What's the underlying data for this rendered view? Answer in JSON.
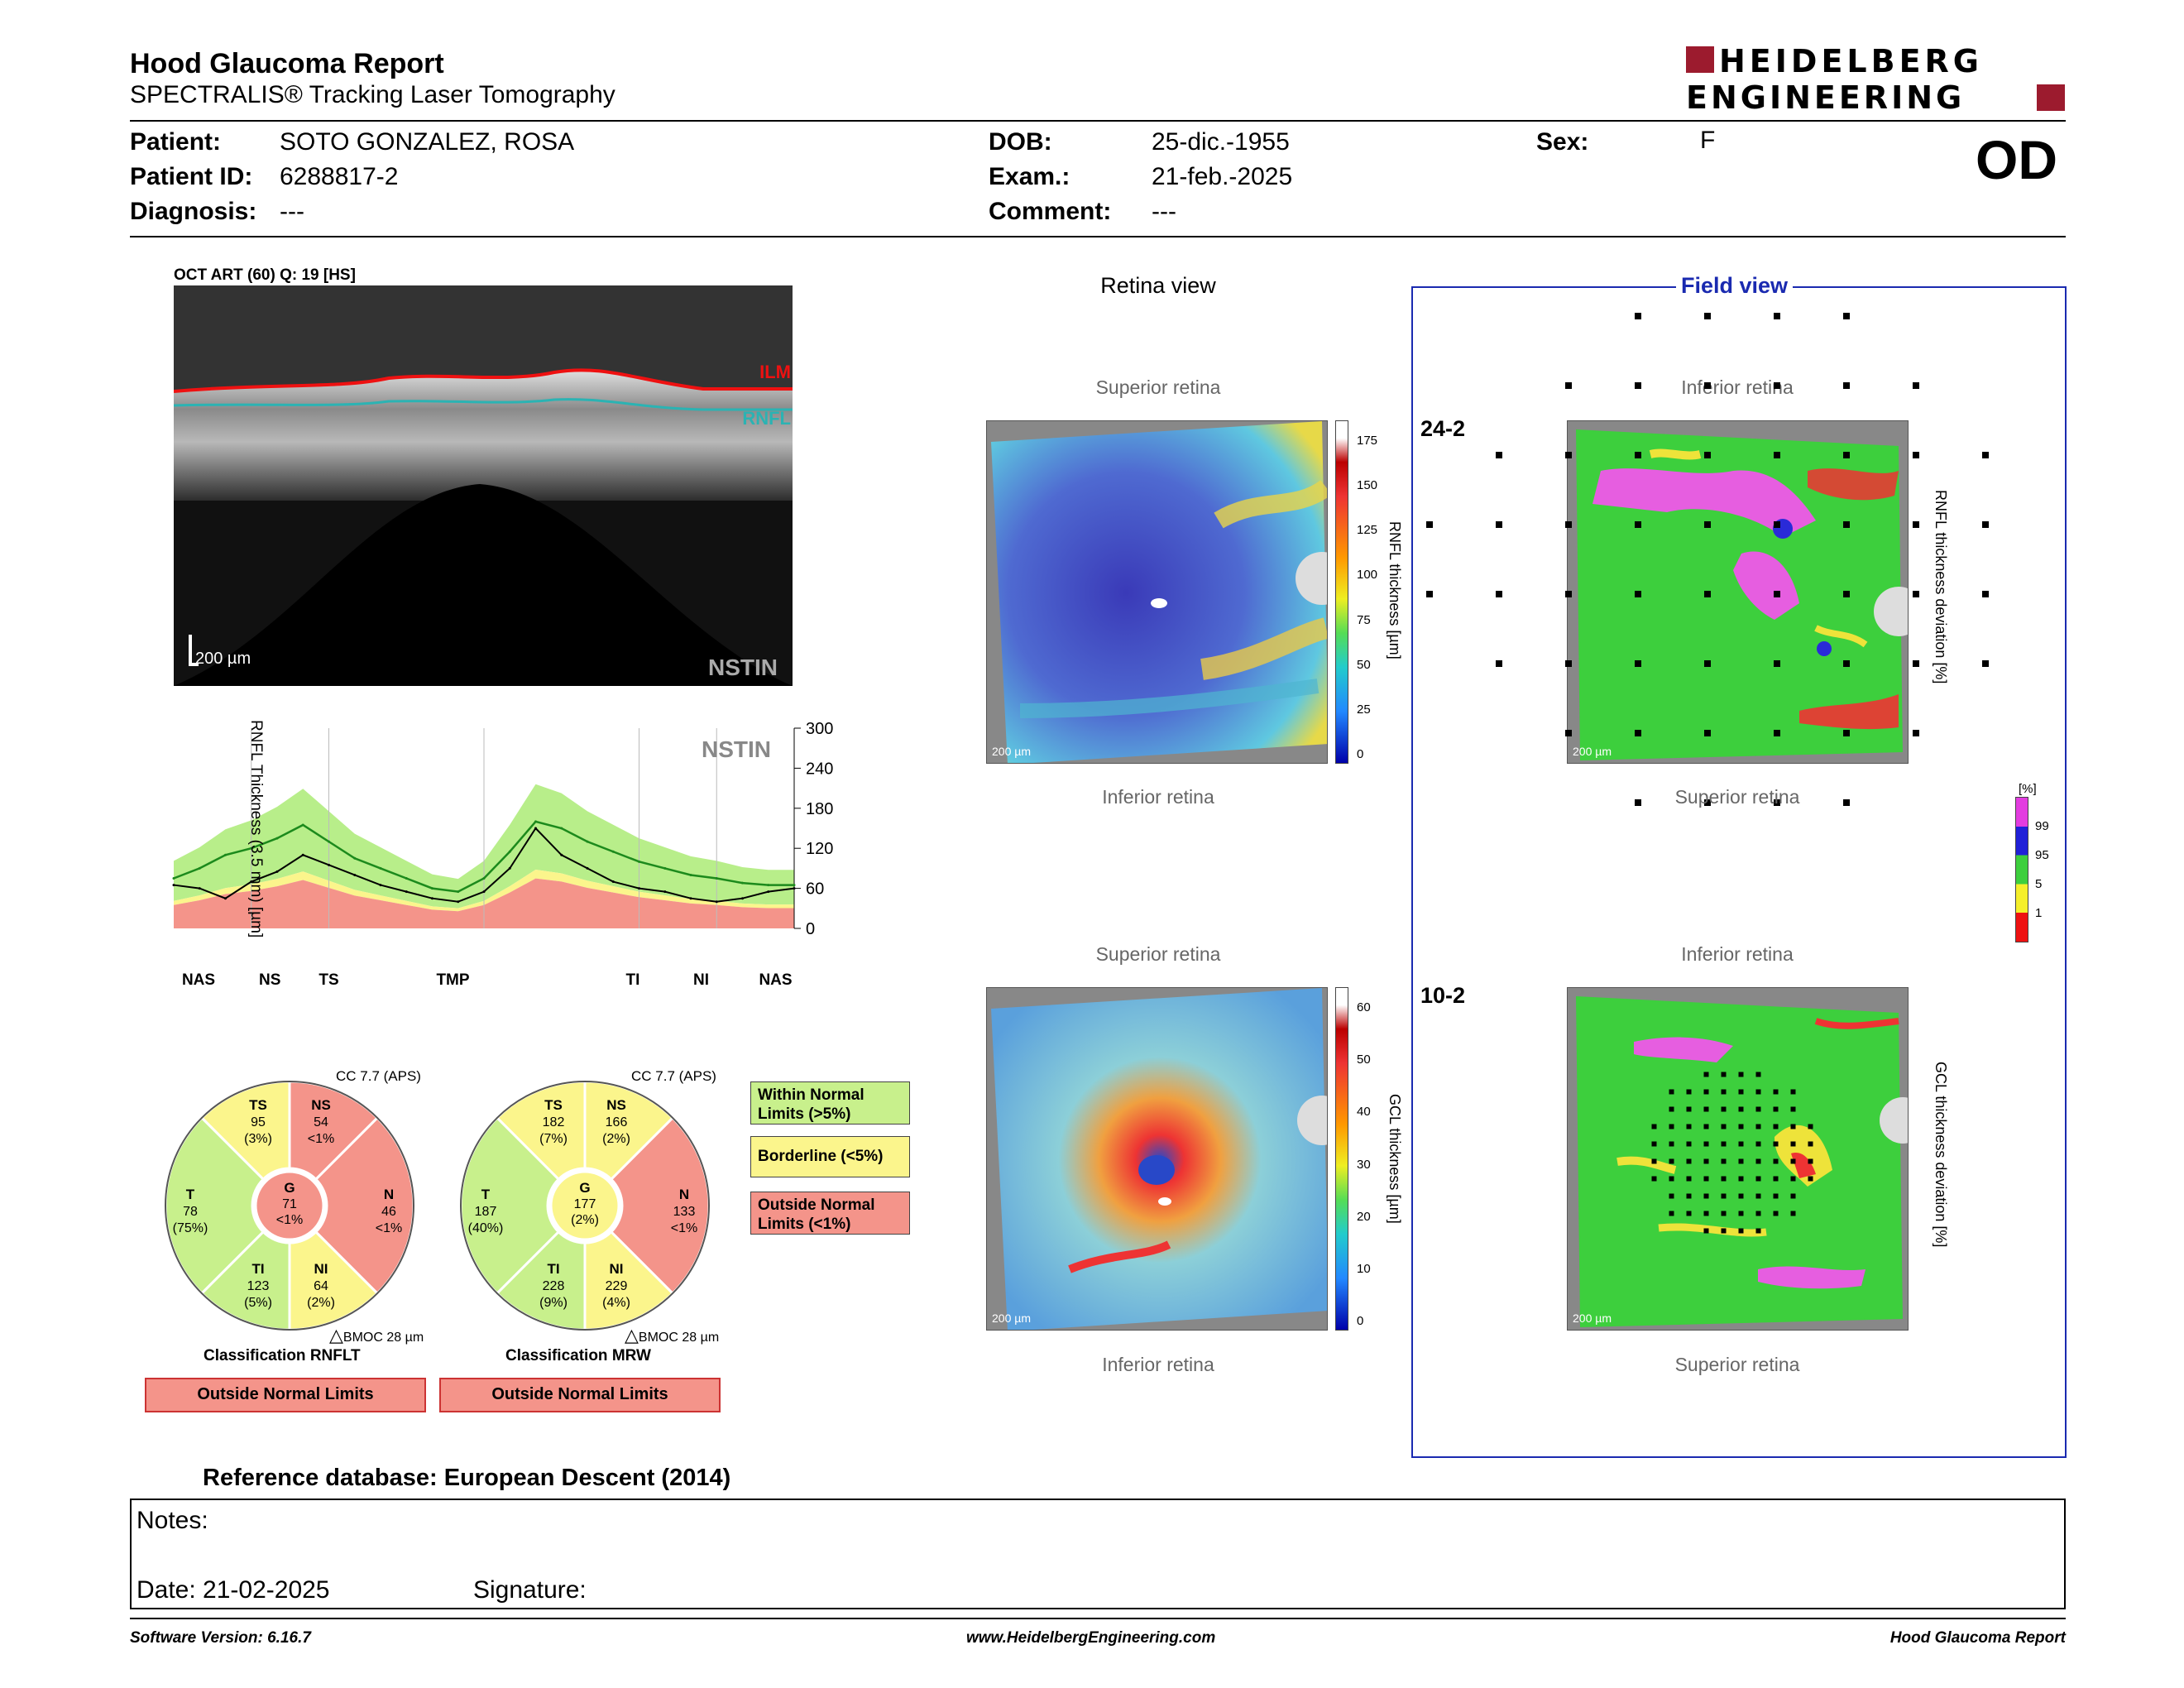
{
  "header": {
    "title": "Hood Glaucoma Report",
    "subtitle": "SPECTRALIS® Tracking Laser Tomography",
    "logo_line1": "HEIDELBERG",
    "logo_line2": "ENGINEERING",
    "eye": "OD"
  },
  "patient": {
    "name_label": "Patient:",
    "name": "SOTO GONZALEZ, ROSA",
    "id_label": "Patient ID:",
    "id": "6288817-2",
    "diagnosis_label": "Diagnosis:",
    "diagnosis": "---",
    "dob_label": "DOB:",
    "dob": "25-dic.-1955",
    "exam_label": "Exam.:",
    "exam": "21-feb.-2025",
    "comment_label": "Comment:",
    "comment": "---",
    "sex_label": "Sex:",
    "sex": "F"
  },
  "oct": {
    "header": "OCT ART (60) Q: 19 [HS]",
    "ilm": "ILM",
    "rnfl": "RNFL",
    "scale": "200 µm",
    "nstin": "NSTIN"
  },
  "profile": {
    "nstin": "NSTIN",
    "ylabel": "RNFL Thickness (3.5 mm) [µm]",
    "yticks": [
      "300",
      "240",
      "180",
      "120",
      "60",
      "0"
    ],
    "sectors": [
      "NAS",
      "NS",
      "TS",
      "TMP",
      "TI",
      "NI",
      "NAS"
    ]
  },
  "chart_data": {
    "type": "line",
    "title": "",
    "ylabel": "RNFL Thickness (3.5 mm) [µm]",
    "ylim": [
      0,
      300
    ],
    "x": [
      0,
      15,
      30,
      45,
      60,
      75,
      90,
      105,
      120,
      135,
      150,
      165,
      180,
      195,
      210,
      225,
      240,
      255,
      270,
      285,
      300,
      315,
      330,
      345,
      360
    ],
    "series": [
      {
        "values": [
          65,
          60,
          45,
          70,
          85,
          110,
          95,
          80,
          65,
          55,
          45,
          40,
          55,
          90,
          150,
          110,
          90,
          70,
          60,
          55,
          45,
          40,
          45,
          55,
          60
        ]
      },
      {
        "values": [
          75,
          90,
          110,
          120,
          135,
          155,
          130,
          105,
          90,
          75,
          60,
          55,
          75,
          115,
          160,
          150,
          130,
          115,
          100,
          90,
          80,
          75,
          68,
          65,
          65
        ]
      }
    ]
  },
  "classification": {
    "rnflt": {
      "cc": "CC 7.7 (APS)",
      "sectors": [
        {
          "code": "TS",
          "value": "95",
          "pct": "(3%)",
          "status": "borderline"
        },
        {
          "code": "NS",
          "value": "54",
          "pct": "<1%",
          "status": "outside"
        },
        {
          "code": "N",
          "value": "46",
          "pct": "<1%",
          "status": "outside"
        },
        {
          "code": "NI",
          "value": "64",
          "pct": "(2%)",
          "status": "borderline"
        },
        {
          "code": "TI",
          "value": "123",
          "pct": "(5%)",
          "status": "within"
        },
        {
          "code": "T",
          "value": "78",
          "pct": "(75%)",
          "status": "within"
        },
        {
          "code": "G",
          "value": "71",
          "pct": "<1%",
          "status": "outside"
        }
      ],
      "bmoc": "BMOC 28 µm",
      "title": "Classification RNFLT",
      "result": "Outside Normal Limits"
    },
    "mrw": {
      "cc": "CC 7.7 (APS)",
      "sectors": [
        {
          "code": "TS",
          "value": "182",
          "pct": "(7%)",
          "status": "borderline"
        },
        {
          "code": "NS",
          "value": "166",
          "pct": "(2%)",
          "status": "borderline"
        },
        {
          "code": "N",
          "value": "133",
          "pct": "<1%",
          "status": "outside"
        },
        {
          "code": "NI",
          "value": "229",
          "pct": "(4%)",
          "status": "borderline"
        },
        {
          "code": "TI",
          "value": "228",
          "pct": "(9%)",
          "status": "within"
        },
        {
          "code": "T",
          "value": "187",
          "pct": "(40%)",
          "status": "within"
        },
        {
          "code": "G",
          "value": "177",
          "pct": "(2%)",
          "status": "borderline"
        }
      ],
      "bmoc": "BMOC 28 µm",
      "title": "Classification MRW",
      "result": "Outside Normal Limits"
    },
    "legend": {
      "within": "Within Normal Limits (>5%)",
      "borderline": "Borderline (<5%)",
      "outside": "Outside Normal Limits (<1%)"
    },
    "colors": {
      "within": "#c8f08c",
      "borderline": "#fbf58c",
      "outside": "#f4948a"
    }
  },
  "retina_view": {
    "title": "Retina view",
    "superior": "Superior retina",
    "inferior": "Inferior retina",
    "scale": "200 µm",
    "rnfl_label": "RNFL thickness [µm]",
    "rnfl_ticks": [
      "175",
      "150",
      "125",
      "100",
      "75",
      "50",
      "25",
      "0"
    ],
    "gcl_label": "GCL thickness [µm]",
    "gcl_ticks": [
      "60",
      "50",
      "40",
      "30",
      "20",
      "10",
      "0"
    ]
  },
  "field_view": {
    "title": "Field view",
    "label_24": "24-2",
    "label_10": "10-2",
    "inferior": "Inferior retina",
    "superior": "Superior retina",
    "scale": "200 µm",
    "rnfl_dev_label": "RNFL thickness deviation [%]",
    "gcl_dev_label": "GCL thickness deviation [%]",
    "legend_unit": "[%]",
    "legend_ticks": [
      "99",
      "95",
      "5",
      "1"
    ]
  },
  "reference": "Reference database: European Descent (2014)",
  "notes": {
    "notes_label": "Notes:",
    "date_label": "Date: 21-02-2025",
    "signature_label": "Signature:"
  },
  "footer": {
    "version": "Software Version: 6.16.7",
    "url": "www.HeidelbergEngineering.com",
    "report": "Hood Glaucoma Report"
  }
}
